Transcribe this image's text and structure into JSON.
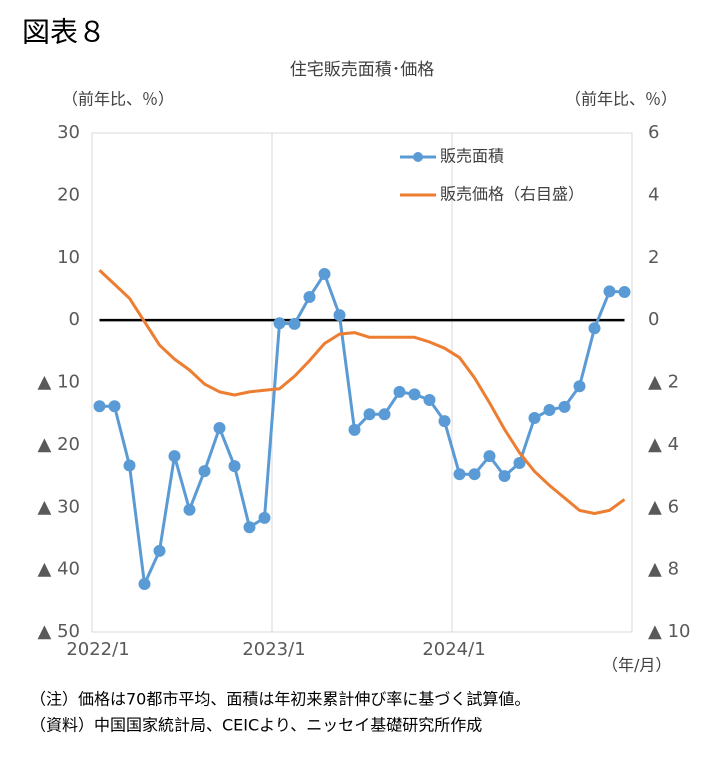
{
  "figure_label": "図表８",
  "chart_data": {
    "type": "line",
    "title": "住宅販売面積･価格",
    "y_axis_label": "（前年比、％）",
    "y2_axis_label": "（前年比、％）",
    "x_axis_label": "（年/月）",
    "categories": [
      "2022/1",
      null,
      null,
      null,
      null,
      null,
      null,
      null,
      null,
      null,
      null,
      null,
      "2023/1",
      null,
      null,
      null,
      null,
      null,
      null,
      null,
      null,
      null,
      null,
      null,
      "2024/1",
      null,
      null,
      null,
      null,
      null,
      null,
      null,
      null,
      null,
      null,
      null
    ],
    "series": [
      {
        "name": "販売面積",
        "color": "#5b9bd5",
        "axis": "y",
        "markers": true,
        "values": [
          -13.8,
          -13.8,
          -23.3,
          -42.3,
          -37.0,
          -21.8,
          -30.4,
          -24.2,
          -17.3,
          -23.4,
          -33.2,
          -31.7,
          -0.5,
          -0.6,
          3.7,
          7.4,
          0.8,
          -17.6,
          -15.1,
          -15.1,
          -11.5,
          -11.9,
          -12.8,
          -16.2,
          -24.7,
          -24.7,
          -21.8,
          -25.0,
          -22.9,
          -15.7,
          -14.4,
          -13.9,
          -10.6,
          -1.3,
          4.6,
          4.5
        ]
      },
      {
        "name": "販売価格（右目盛）",
        "color": "#ed7d31",
        "axis": "y2",
        "markers": false,
        "values": [
          1.6,
          1.15,
          0.7,
          -0.05,
          -0.8,
          -1.25,
          -1.6,
          -2.05,
          -2.3,
          -2.4,
          -2.3,
          -2.25,
          -2.2,
          -1.8,
          -1.3,
          -0.75,
          -0.45,
          -0.4,
          -0.55,
          -0.55,
          -0.55,
          -0.55,
          -0.7,
          -0.9,
          -1.2,
          -1.85,
          -2.65,
          -3.5,
          -4.25,
          -4.85,
          -5.3,
          -5.7,
          -6.1,
          -6.2,
          -6.1,
          -5.75
        ]
      }
    ],
    "ylim": [
      -50,
      30
    ],
    "yticks": [
      30,
      20,
      10,
      0,
      {
        "value": -10,
        "label": "▲ 10"
      },
      {
        "value": -20,
        "label": "▲ 20"
      },
      {
        "value": -30,
        "label": "▲ 30"
      },
      {
        "value": -40,
        "label": "▲ 40"
      },
      {
        "value": -50,
        "label": "▲ 50"
      }
    ],
    "y2lim": [
      -10,
      6
    ],
    "y2ticks": [
      6,
      4,
      2,
      0,
      {
        "value": -2,
        "label": "▲ 2"
      },
      {
        "value": -4,
        "label": "▲ 4"
      },
      {
        "value": -6,
        "label": "▲ 6"
      },
      {
        "value": -8,
        "label": "▲ 8"
      },
      {
        "value": -10,
        "label": "▲ 10"
      }
    ],
    "legend": "upper right"
  },
  "notes": [
    "（注）価格は70都市平均、面積は年初来累計伸び率に基づく試算値。",
    "（資料）中国国家統計局、CEICより、ニッセイ基礎研究所作成"
  ]
}
